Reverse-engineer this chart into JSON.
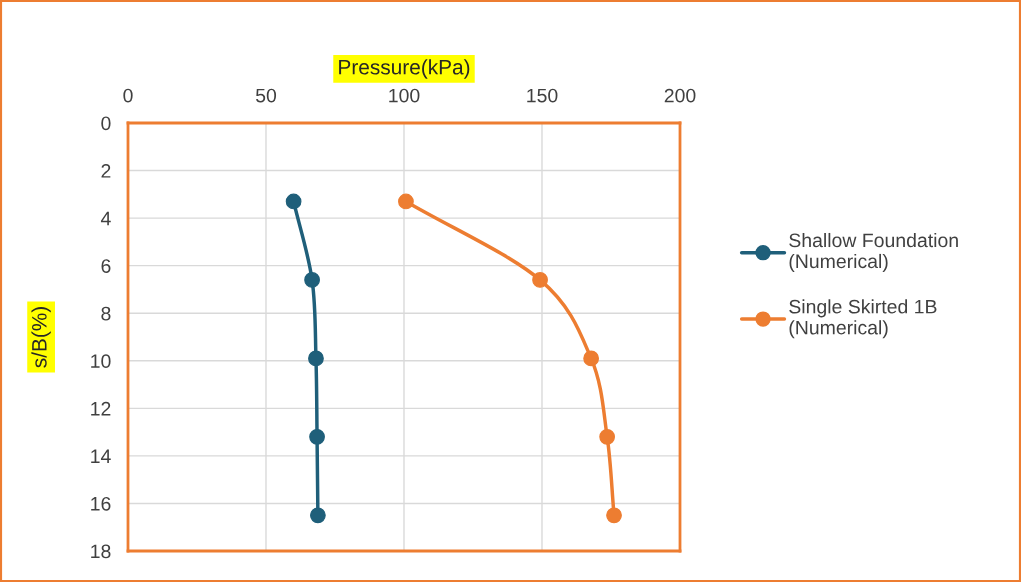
{
  "chart_data": {
    "type": "line",
    "xlabel": "Pressure(kPa)",
    "ylabel": "s/B(%)",
    "xlim": [
      0,
      200
    ],
    "xticks": [
      0,
      50,
      100,
      150,
      200
    ],
    "ylim": [
      18,
      0
    ],
    "yticks": [
      0,
      2,
      4,
      6,
      8,
      10,
      12,
      14,
      16,
      18
    ],
    "grid": true,
    "legend": "right",
    "marker": "circle",
    "line_style": "solid",
    "series": [
      {
        "name": "Shallow Foundation\n(Numerical)",
        "color": "#1f5f7a",
        "x": [
          60,
          66.7,
          68.1,
          68.5,
          68.8
        ],
        "values": [
          3.3,
          6.6,
          9.9,
          13.2,
          16.5
        ]
      },
      {
        "name": "Single Skirted 1B\n(Numerical)",
        "color": "#ed7d31",
        "x": [
          100.7,
          149.3,
          167.8,
          173.6,
          176.1
        ],
        "values": [
          3.3,
          6.6,
          9.9,
          13.2,
          16.5
        ]
      }
    ]
  }
}
